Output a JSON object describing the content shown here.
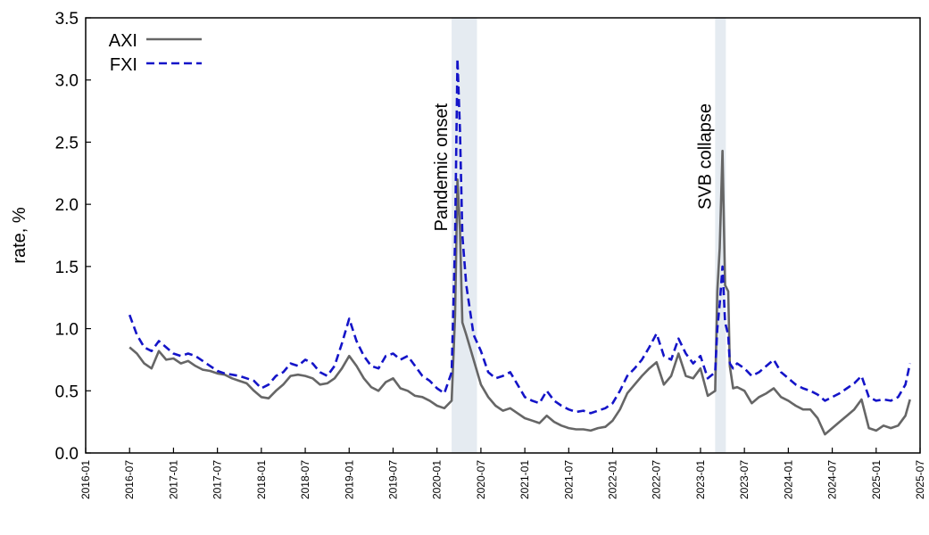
{
  "chart_data": {
    "type": "line",
    "ylabel": "rate, %",
    "xlabel": "",
    "ylim": [
      0,
      3.5
    ],
    "xlim": [
      "2016-01",
      "2025-07"
    ],
    "yticks": [
      "0.0",
      "0.5",
      "1.0",
      "1.5",
      "2.0",
      "2.5",
      "3.0",
      "3.5"
    ],
    "xticks": [
      "2016-01",
      "2016-07",
      "2017-01",
      "2017-07",
      "2018-01",
      "2018-07",
      "2019-01",
      "2019-07",
      "2020-01",
      "2020-07",
      "2021-01",
      "2021-07",
      "2022-01",
      "2022-07",
      "2023-01",
      "2023-07",
      "2024-01",
      "2024-07",
      "2025-01",
      "2025-07"
    ],
    "grid": false,
    "legend": "top-left",
    "colors": {
      "AXI": "#666666",
      "FXI": "#1414c8",
      "shade": "#e5ebf1"
    },
    "shaded_periods": [
      {
        "label": "Pandemic onset",
        "start": "2020-03",
        "end": "2020-06-15"
      },
      {
        "label": "SVB collapse",
        "start": "2023-03",
        "end": "2023-04-15"
      }
    ],
    "series": [
      {
        "name": "AXI",
        "style": "solid",
        "points": [
          [
            "2016-07",
            0.85
          ],
          [
            "2016-08",
            0.8
          ],
          [
            "2016-09",
            0.72
          ],
          [
            "2016-10",
            0.68
          ],
          [
            "2016-11",
            0.82
          ],
          [
            "2016-12",
            0.75
          ],
          [
            "2017-01",
            0.76
          ],
          [
            "2017-02",
            0.72
          ],
          [
            "2017-03",
            0.74
          ],
          [
            "2017-04",
            0.7
          ],
          [
            "2017-05",
            0.67
          ],
          [
            "2017-06",
            0.66
          ],
          [
            "2017-07",
            0.64
          ],
          [
            "2017-08",
            0.63
          ],
          [
            "2017-09",
            0.6
          ],
          [
            "2017-10",
            0.58
          ],
          [
            "2017-11",
            0.56
          ],
          [
            "2017-12",
            0.5
          ],
          [
            "2018-01",
            0.45
          ],
          [
            "2018-02",
            0.44
          ],
          [
            "2018-03",
            0.5
          ],
          [
            "2018-04",
            0.55
          ],
          [
            "2018-05",
            0.62
          ],
          [
            "2018-06",
            0.63
          ],
          [
            "2018-07",
            0.62
          ],
          [
            "2018-08",
            0.6
          ],
          [
            "2018-09",
            0.55
          ],
          [
            "2018-10",
            0.56
          ],
          [
            "2018-11",
            0.6
          ],
          [
            "2018-12",
            0.68
          ],
          [
            "2019-01",
            0.78
          ],
          [
            "2019-02",
            0.7
          ],
          [
            "2019-03",
            0.6
          ],
          [
            "2019-04",
            0.53
          ],
          [
            "2019-05",
            0.5
          ],
          [
            "2019-06",
            0.57
          ],
          [
            "2019-07",
            0.6
          ],
          [
            "2019-08",
            0.52
          ],
          [
            "2019-09",
            0.5
          ],
          [
            "2019-10",
            0.46
          ],
          [
            "2019-11",
            0.45
          ],
          [
            "2019-12",
            0.42
          ],
          [
            "2020-01",
            0.38
          ],
          [
            "2020-02",
            0.36
          ],
          [
            "2020-03",
            0.42
          ],
          [
            "2020-03-15",
            1.1
          ],
          [
            "2020-03-25",
            2.2
          ],
          [
            "2020-04-05",
            1.8
          ],
          [
            "2020-04-15",
            1.05
          ],
          [
            "2020-05",
            0.95
          ],
          [
            "2020-06",
            0.75
          ],
          [
            "2020-07",
            0.55
          ],
          [
            "2020-08",
            0.45
          ],
          [
            "2020-09",
            0.38
          ],
          [
            "2020-10",
            0.34
          ],
          [
            "2020-11",
            0.36
          ],
          [
            "2020-12",
            0.32
          ],
          [
            "2021-01",
            0.28
          ],
          [
            "2021-02",
            0.26
          ],
          [
            "2021-03",
            0.24
          ],
          [
            "2021-04",
            0.3
          ],
          [
            "2021-05",
            0.25
          ],
          [
            "2021-06",
            0.22
          ],
          [
            "2021-07",
            0.2
          ],
          [
            "2021-08",
            0.19
          ],
          [
            "2021-09",
            0.19
          ],
          [
            "2021-10",
            0.18
          ],
          [
            "2021-11",
            0.2
          ],
          [
            "2021-12",
            0.21
          ],
          [
            "2022-01",
            0.26
          ],
          [
            "2022-02",
            0.35
          ],
          [
            "2022-03",
            0.48
          ],
          [
            "2022-04",
            0.55
          ],
          [
            "2022-05",
            0.62
          ],
          [
            "2022-06",
            0.68
          ],
          [
            "2022-07",
            0.73
          ],
          [
            "2022-08",
            0.55
          ],
          [
            "2022-09",
            0.62
          ],
          [
            "2022-10",
            0.8
          ],
          [
            "2022-11",
            0.62
          ],
          [
            "2022-12",
            0.6
          ],
          [
            "2023-01",
            0.68
          ],
          [
            "2023-02",
            0.46
          ],
          [
            "2023-03",
            0.5
          ],
          [
            "2023-03-10",
            1.3
          ],
          [
            "2023-03-20",
            1.65
          ],
          [
            "2023-04-01",
            2.43
          ],
          [
            "2023-04-12",
            1.35
          ],
          [
            "2023-04-25",
            1.3
          ],
          [
            "2023-05",
            0.7
          ],
          [
            "2023-05-15",
            0.52
          ],
          [
            "2023-06",
            0.53
          ],
          [
            "2023-07",
            0.5
          ],
          [
            "2023-08",
            0.4
          ],
          [
            "2023-09",
            0.45
          ],
          [
            "2023-10",
            0.48
          ],
          [
            "2023-11",
            0.52
          ],
          [
            "2023-12",
            0.45
          ],
          [
            "2024-01",
            0.42
          ],
          [
            "2024-02",
            0.38
          ],
          [
            "2024-03",
            0.35
          ],
          [
            "2024-04",
            0.35
          ],
          [
            "2024-05",
            0.28
          ],
          [
            "2024-06",
            0.15
          ],
          [
            "2024-07",
            0.2
          ],
          [
            "2024-08",
            0.25
          ],
          [
            "2024-09",
            0.3
          ],
          [
            "2024-10",
            0.35
          ],
          [
            "2024-11",
            0.43
          ],
          [
            "2024-12",
            0.2
          ],
          [
            "2025-01",
            0.18
          ],
          [
            "2025-02",
            0.22
          ],
          [
            "2025-03",
            0.2
          ],
          [
            "2025-04",
            0.22
          ],
          [
            "2025-05",
            0.3
          ],
          [
            "2025-05-20",
            0.43
          ]
        ]
      },
      {
        "name": "FXI",
        "style": "dashed",
        "points": [
          [
            "2016-07",
            1.11
          ],
          [
            "2016-08",
            0.95
          ],
          [
            "2016-09",
            0.85
          ],
          [
            "2016-10",
            0.82
          ],
          [
            "2016-11",
            0.9
          ],
          [
            "2016-12",
            0.85
          ],
          [
            "2017-01",
            0.8
          ],
          [
            "2017-02",
            0.78
          ],
          [
            "2017-03",
            0.8
          ],
          [
            "2017-04",
            0.78
          ],
          [
            "2017-05",
            0.74
          ],
          [
            "2017-06",
            0.7
          ],
          [
            "2017-07",
            0.66
          ],
          [
            "2017-08",
            0.64
          ],
          [
            "2017-09",
            0.63
          ],
          [
            "2017-10",
            0.62
          ],
          [
            "2017-11",
            0.6
          ],
          [
            "2017-12",
            0.58
          ],
          [
            "2018-01",
            0.52
          ],
          [
            "2018-02",
            0.55
          ],
          [
            "2018-03",
            0.62
          ],
          [
            "2018-04",
            0.65
          ],
          [
            "2018-05",
            0.72
          ],
          [
            "2018-06",
            0.7
          ],
          [
            "2018-07",
            0.75
          ],
          [
            "2018-08",
            0.72
          ],
          [
            "2018-09",
            0.65
          ],
          [
            "2018-10",
            0.62
          ],
          [
            "2018-11",
            0.7
          ],
          [
            "2018-12",
            0.88
          ],
          [
            "2019-01",
            1.08
          ],
          [
            "2019-02",
            0.9
          ],
          [
            "2019-03",
            0.78
          ],
          [
            "2019-04",
            0.7
          ],
          [
            "2019-05",
            0.68
          ],
          [
            "2019-06",
            0.78
          ],
          [
            "2019-07",
            0.8
          ],
          [
            "2019-08",
            0.75
          ],
          [
            "2019-09",
            0.78
          ],
          [
            "2019-10",
            0.7
          ],
          [
            "2019-11",
            0.62
          ],
          [
            "2019-12",
            0.58
          ],
          [
            "2020-01",
            0.52
          ],
          [
            "2020-02",
            0.48
          ],
          [
            "2020-03",
            0.65
          ],
          [
            "2020-03-15",
            1.7
          ],
          [
            "2020-03-25",
            3.17
          ],
          [
            "2020-04-05",
            2.6
          ],
          [
            "2020-04-15",
            1.75
          ],
          [
            "2020-05",
            1.35
          ],
          [
            "2020-06",
            0.95
          ],
          [
            "2020-07",
            0.82
          ],
          [
            "2020-08",
            0.65
          ],
          [
            "2020-09",
            0.6
          ],
          [
            "2020-10",
            0.62
          ],
          [
            "2020-11",
            0.65
          ],
          [
            "2020-12",
            0.55
          ],
          [
            "2021-01",
            0.45
          ],
          [
            "2021-02",
            0.42
          ],
          [
            "2021-03",
            0.4
          ],
          [
            "2021-04",
            0.5
          ],
          [
            "2021-05",
            0.42
          ],
          [
            "2021-06",
            0.38
          ],
          [
            "2021-07",
            0.35
          ],
          [
            "2021-08",
            0.33
          ],
          [
            "2021-09",
            0.34
          ],
          [
            "2021-10",
            0.32
          ],
          [
            "2021-11",
            0.34
          ],
          [
            "2021-12",
            0.36
          ],
          [
            "2022-01",
            0.4
          ],
          [
            "2022-02",
            0.5
          ],
          [
            "2022-03",
            0.62
          ],
          [
            "2022-04",
            0.68
          ],
          [
            "2022-05",
            0.75
          ],
          [
            "2022-06",
            0.85
          ],
          [
            "2022-07",
            0.96
          ],
          [
            "2022-08",
            0.78
          ],
          [
            "2022-09",
            0.75
          ],
          [
            "2022-10",
            0.92
          ],
          [
            "2022-11",
            0.8
          ],
          [
            "2022-12",
            0.72
          ],
          [
            "2023-01",
            0.78
          ],
          [
            "2023-02",
            0.6
          ],
          [
            "2023-03",
            0.65
          ],
          [
            "2023-03-10",
            1.0
          ],
          [
            "2023-03-20",
            1.2
          ],
          [
            "2023-04-01",
            1.5
          ],
          [
            "2023-04-12",
            1.05
          ],
          [
            "2023-04-25",
            0.95
          ],
          [
            "2023-05",
            0.72
          ],
          [
            "2023-05-15",
            0.68
          ],
          [
            "2023-06",
            0.72
          ],
          [
            "2023-07",
            0.68
          ],
          [
            "2023-08",
            0.62
          ],
          [
            "2023-09",
            0.65
          ],
          [
            "2023-10",
            0.7
          ],
          [
            "2023-11",
            0.75
          ],
          [
            "2023-12",
            0.65
          ],
          [
            "2024-01",
            0.6
          ],
          [
            "2024-02",
            0.55
          ],
          [
            "2024-03",
            0.52
          ],
          [
            "2024-04",
            0.5
          ],
          [
            "2024-05",
            0.47
          ],
          [
            "2024-06",
            0.42
          ],
          [
            "2024-07",
            0.45
          ],
          [
            "2024-08",
            0.48
          ],
          [
            "2024-09",
            0.52
          ],
          [
            "2024-10",
            0.56
          ],
          [
            "2024-11",
            0.62
          ],
          [
            "2024-12",
            0.45
          ],
          [
            "2025-01",
            0.42
          ],
          [
            "2025-02",
            0.43
          ],
          [
            "2025-03",
            0.42
          ],
          [
            "2025-04",
            0.45
          ],
          [
            "2025-05",
            0.55
          ],
          [
            "2025-05-20",
            0.72
          ]
        ]
      }
    ]
  }
}
